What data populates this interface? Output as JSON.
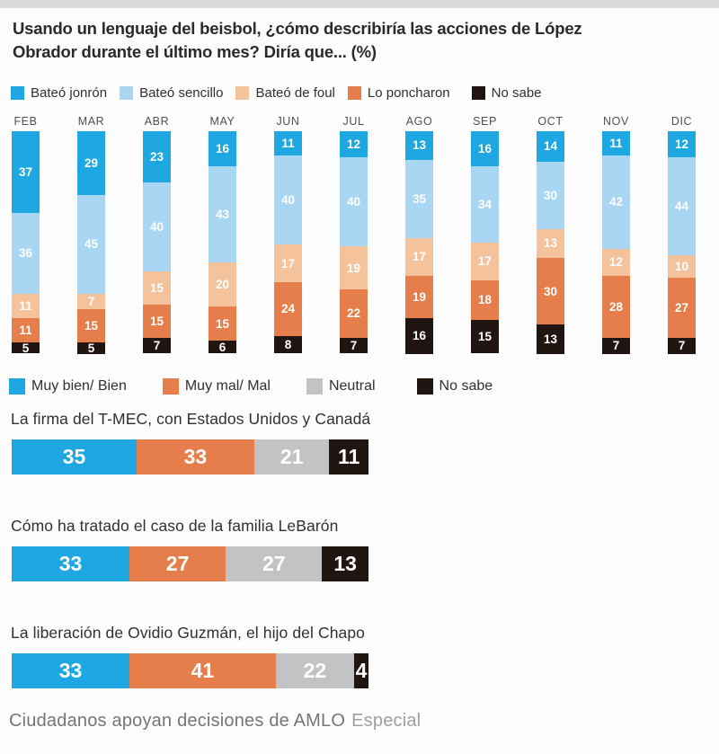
{
  "header": {
    "title_lines": [
      "Usando un lenguaje del beisbol, ¿cómo describiría las acciones de López",
      "Obrador durante el último mes? Diría que... (%)"
    ]
  },
  "footer": {
    "text": "Ciudadanos apoyan decisiones de AMLO",
    "credit": "Especial"
  },
  "colors": {
    "bright_blue": "#1ea7e1",
    "light_blue": "#a9d6f3",
    "peach": "#f4c29b",
    "orange": "#e67e4b",
    "black": "#201510",
    "neutral_gray": "#c2c3c5"
  },
  "chart_data": [
    {
      "type": "bar",
      "subtype": "stacked-vertical-100pct",
      "title": "Usando un lenguaje del beisbol, ¿cómo describiría las acciones de López Obrador durante el último mes? Diría que... (%)",
      "legend_position": "top",
      "categories": [
        "FEB",
        "MAR",
        "ABR",
        "MAY",
        "JUN",
        "JUL",
        "AGO",
        "SEP",
        "OCT",
        "NOV",
        "DIC"
      ],
      "series": [
        {
          "key": "jonron",
          "name": "Bateó jonrón",
          "color": "#1ea7e1",
          "values": [
            37,
            29,
            23,
            16,
            11,
            12,
            13,
            16,
            14,
            11,
            12
          ]
        },
        {
          "key": "sencillo",
          "name": "Bateó sencillo",
          "color": "#a9d6f3",
          "values": [
            36,
            45,
            40,
            43,
            40,
            40,
            35,
            34,
            30,
            42,
            44
          ]
        },
        {
          "key": "foul",
          "name": "Bateó de foul",
          "color": "#f4c29b",
          "values": [
            11,
            7,
            15,
            20,
            17,
            19,
            17,
            17,
            13,
            12,
            10
          ]
        },
        {
          "key": "poncharon",
          "name": "Lo poncharon",
          "color": "#e67e4b",
          "values": [
            11,
            15,
            15,
            15,
            24,
            22,
            19,
            18,
            30,
            28,
            27
          ]
        },
        {
          "key": "no-sabe",
          "name": "No sabe",
          "color": "#201510",
          "values": [
            5,
            5,
            7,
            6,
            8,
            7,
            16,
            15,
            13,
            7,
            7
          ]
        }
      ]
    },
    {
      "type": "bar",
      "subtype": "stacked-horizontal-100pct",
      "legend_position": "top",
      "categories": [
        "La firma del T-MEC, con Estados Unidos y Canadá",
        "Cómo ha tratado el caso de la familia LeBarón",
        "La liberación de Ovidio Guzmán, el hijo del Chapo"
      ],
      "series": [
        {
          "key": "muy-bien",
          "name": "Muy bien/ Bien",
          "color": "#1ea7e1",
          "values": [
            35,
            33,
            33
          ]
        },
        {
          "key": "muy-mal",
          "name": "Muy mal/ Mal",
          "color": "#e67e4b",
          "values": [
            33,
            27,
            41
          ]
        },
        {
          "key": "neutral",
          "name": "Neutral",
          "color": "#c2c3c5",
          "values": [
            21,
            27,
            22
          ]
        },
        {
          "key": "no-sabe",
          "name": "No sabe",
          "color": "#201510",
          "values": [
            11,
            13,
            4
          ]
        }
      ]
    }
  ]
}
